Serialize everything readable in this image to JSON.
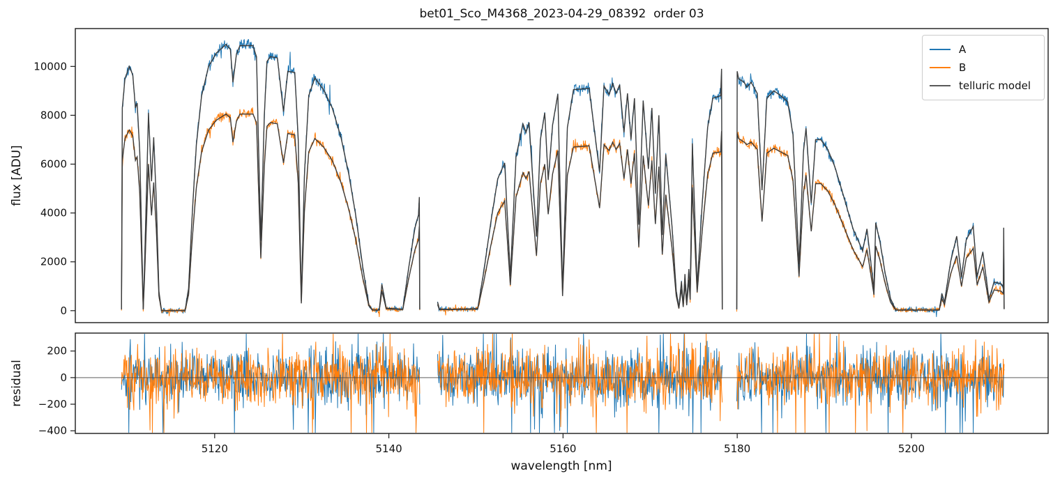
{
  "chart_data": {
    "type": "line",
    "title": "bet01_Sco_M4368_2023-04-29_08392  order 03",
    "xlabel": "wavelength [nm]",
    "ylabel_top": "flux [ADU]",
    "ylabel_bottom": "residual",
    "xlim": [
      5104.0,
      5215.7
    ],
    "ylim_top": [
      -490,
      11550
    ],
    "ylim_bottom": [
      -420,
      335
    ],
    "xticks": [
      5120,
      5140,
      5160,
      5180,
      5200
    ],
    "yticks_top": [
      0,
      2000,
      4000,
      6000,
      8000,
      10000
    ],
    "yticks_bottom": [
      200,
      0,
      -200,
      -400
    ],
    "grid": false,
    "legend_position": "upper right",
    "legend": [
      {
        "label": "A",
        "color": "#1f77b4"
      },
      {
        "label": "B",
        "color": "#ff7f0e"
      },
      {
        "label": "telluric model",
        "color": "#595959"
      }
    ],
    "model_line_color": "#3c3c3c",
    "series_notes": "A and B are observed nodding spectra; the telluric model is the smooth dark fit overlying both A and B. Flux values below are control points read from the figure; plotted curves interpolate them with photon-noise scatter. Bottom panel shows data-minus-model residuals for A (blue) and B (orange), zero-mean noise clipped at the axes.",
    "noise": {
      "seed": 20230429,
      "spectrum_sigma_base": 50,
      "spectrum_sigma_flux_frac": 0.009,
      "spectrum_spike_prob": 0.02,
      "spectrum_spike_factor": 2.5,
      "residual_sigma_A": 100,
      "residual_sigma_B": 105,
      "residual_spike_prob": 0.07,
      "residual_spike_factor": 2.7,
      "sample_step_nm": 0.055
    },
    "segments": [
      {
        "x": [
          5109.3,
          5109.4,
          5109.7,
          5110.2,
          5110.6,
          5110.9,
          5111.1,
          5111.4,
          5111.65,
          5111.8,
          5112.0,
          5112.4,
          5112.75,
          5113.0,
          5113.3,
          5113.6,
          5113.9,
          5116.6,
          5117.0,
          5117.4,
          5117.9,
          5118.5,
          5119.3,
          5120.2,
          5121.3,
          5121.8,
          5122.1,
          5122.5,
          5122.9,
          5124.4,
          5124.8,
          5125.3,
          5125.7,
          5126.0,
          5126.4,
          5127.2,
          5127.9,
          5128.4,
          5129.2,
          5129.6,
          5129.95,
          5130.3,
          5130.8,
          5131.5,
          5132.5,
          5133.5,
          5134.5,
          5135.4,
          5136.2,
          5137.0,
          5137.7,
          5138.1,
          5138.9,
          5139.2,
          5139.7,
          5141.6,
          5142.3,
          5143.0,
          5143.4,
          5143.5,
          5143.55
        ],
        "A": [
          60,
          8300,
          9500,
          10000,
          9650,
          8300,
          8500,
          6500,
          2500,
          60,
          2500,
          8100,
          5300,
          7100,
          4500,
          800,
          0,
          0,
          900,
          3800,
          6800,
          8800,
          10000,
          10550,
          10900,
          10700,
          9350,
          10500,
          10850,
          10850,
          10400,
          2870,
          8000,
          10200,
          10400,
          10350,
          8150,
          9800,
          9750,
          7000,
          400,
          5500,
          8800,
          9530,
          9050,
          8300,
          7100,
          5600,
          3900,
          1800,
          250,
          30,
          30,
          1080,
          100,
          60,
          1800,
          3400,
          3900,
          4650,
          60
        ],
        "B": [
          50,
          6150,
          7050,
          7400,
          7150,
          6150,
          6300,
          4800,
          1850,
          50,
          1850,
          6000,
          3900,
          5250,
          3350,
          600,
          0,
          0,
          650,
          2800,
          5050,
          6500,
          7400,
          7800,
          8050,
          7900,
          6900,
          7750,
          8050,
          8050,
          7700,
          2150,
          5900,
          7550,
          7700,
          7650,
          6050,
          7250,
          7200,
          5200,
          300,
          4050,
          6500,
          7050,
          6700,
          6150,
          5250,
          4150,
          2900,
          1350,
          200,
          20,
          20,
          800,
          80,
          50,
          1350,
          2500,
          2900,
          3450,
          50
        ]
      },
      {
        "x": [
          5145.6,
          5145.8,
          5150.2,
          5150.9,
          5151.7,
          5152.5,
          5153.3,
          5153.95,
          5154.6,
          5155.4,
          5155.75,
          5156.1,
          5156.95,
          5157.4,
          5157.9,
          5158.3,
          5158.8,
          5159.4,
          5159.95,
          5160.5,
          5161.2,
          5163.0,
          5164.2,
          5164.7,
          5165.3,
          5165.7,
          5166.1,
          5166.5,
          5167.0,
          5167.4,
          5167.8,
          5168.2,
          5168.7,
          5169.2,
          5169.8,
          5170.2,
          5170.6,
          5171.0,
          5171.4,
          5171.8,
          5172.5,
          5173.0,
          5173.3,
          5173.6,
          5173.8,
          5174.0,
          5174.2,
          5174.45,
          5174.6,
          5174.85,
          5175.4,
          5176.0,
          5176.6,
          5177.2,
          5178.1,
          5178.2,
          5178.28
        ],
        "A": [
          350,
          50,
          80,
          1600,
          3600,
          5400,
          6050,
          1400,
          6300,
          7650,
          7300,
          7700,
          3050,
          7000,
          8100,
          5350,
          7600,
          8870,
          800,
          7500,
          9050,
          9100,
          5680,
          9200,
          8850,
          9300,
          8900,
          9250,
          7300,
          8900,
          7000,
          8700,
          3520,
          8600,
          5800,
          8300,
          4800,
          8000,
          3100,
          6400,
          3500,
          800,
          120,
          1200,
          200,
          1500,
          300,
          1700,
          600,
          6850,
          1000,
          4500,
          7500,
          8700,
          8800,
          9900,
          60
        ],
        "B": [
          250,
          40,
          60,
          1200,
          2650,
          4000,
          4500,
          1050,
          4650,
          5650,
          5400,
          5700,
          2250,
          5200,
          6000,
          3950,
          5600,
          6550,
          600,
          5550,
          6700,
          6750,
          4200,
          6800,
          6550,
          6900,
          6600,
          6850,
          5400,
          6600,
          5200,
          6450,
          2600,
          6350,
          4300,
          6150,
          3550,
          5900,
          2300,
          4750,
          2600,
          600,
          90,
          900,
          150,
          1100,
          220,
          1250,
          450,
          5050,
          750,
          3350,
          5550,
          6450,
          6500,
          7350,
          50
        ]
      },
      {
        "x": [
          5179.95,
          5180.0,
          5180.15,
          5180.8,
          5181.1,
          5181.6,
          5182.3,
          5182.85,
          5183.4,
          5184.2,
          5185.0,
          5185.8,
          5186.4,
          5187.1,
          5187.6,
          5187.9,
          5188.5,
          5189.0,
          5189.6,
          5190.4,
          5191.2,
          5192.0,
          5193.3,
          5194.4,
          5194.9,
          5195.7,
          5195.9,
          5196.4,
          5197.0,
          5197.6,
          5198.2,
          5203.2,
          5203.5,
          5203.8,
          5204.5,
          5205.2,
          5205.75,
          5206.3,
          5207.1,
          5207.55,
          5208.2,
          5208.9,
          5209.5,
          5210.3,
          5210.55,
          5210.6,
          5210.65
        ],
        "A": [
          60,
          9800,
          9500,
          9350,
          9150,
          9350,
          8900,
          4930,
          8700,
          9000,
          8800,
          8550,
          7200,
          1900,
          6500,
          7470,
          4400,
          7000,
          7000,
          6600,
          5900,
          4950,
          3350,
          2450,
          3350,
          870,
          3600,
          2800,
          1500,
          500,
          30,
          30,
          700,
          350,
          2000,
          3050,
          1370,
          2900,
          3450,
          1400,
          2400,
          480,
          1170,
          1100,
          950,
          3400,
          80
        ],
        "B": [
          50,
          7250,
          7050,
          6900,
          6800,
          6900,
          6600,
          3650,
          6450,
          6650,
          6500,
          6350,
          5350,
          1400,
          4800,
          5550,
          3250,
          5200,
          5200,
          4900,
          4350,
          3650,
          2500,
          1800,
          2500,
          650,
          2650,
          2050,
          1100,
          350,
          20,
          20,
          500,
          250,
          1500,
          2250,
          1000,
          2150,
          2550,
          1050,
          1800,
          350,
          850,
          800,
          700,
          2500,
          60
        ]
      }
    ]
  }
}
